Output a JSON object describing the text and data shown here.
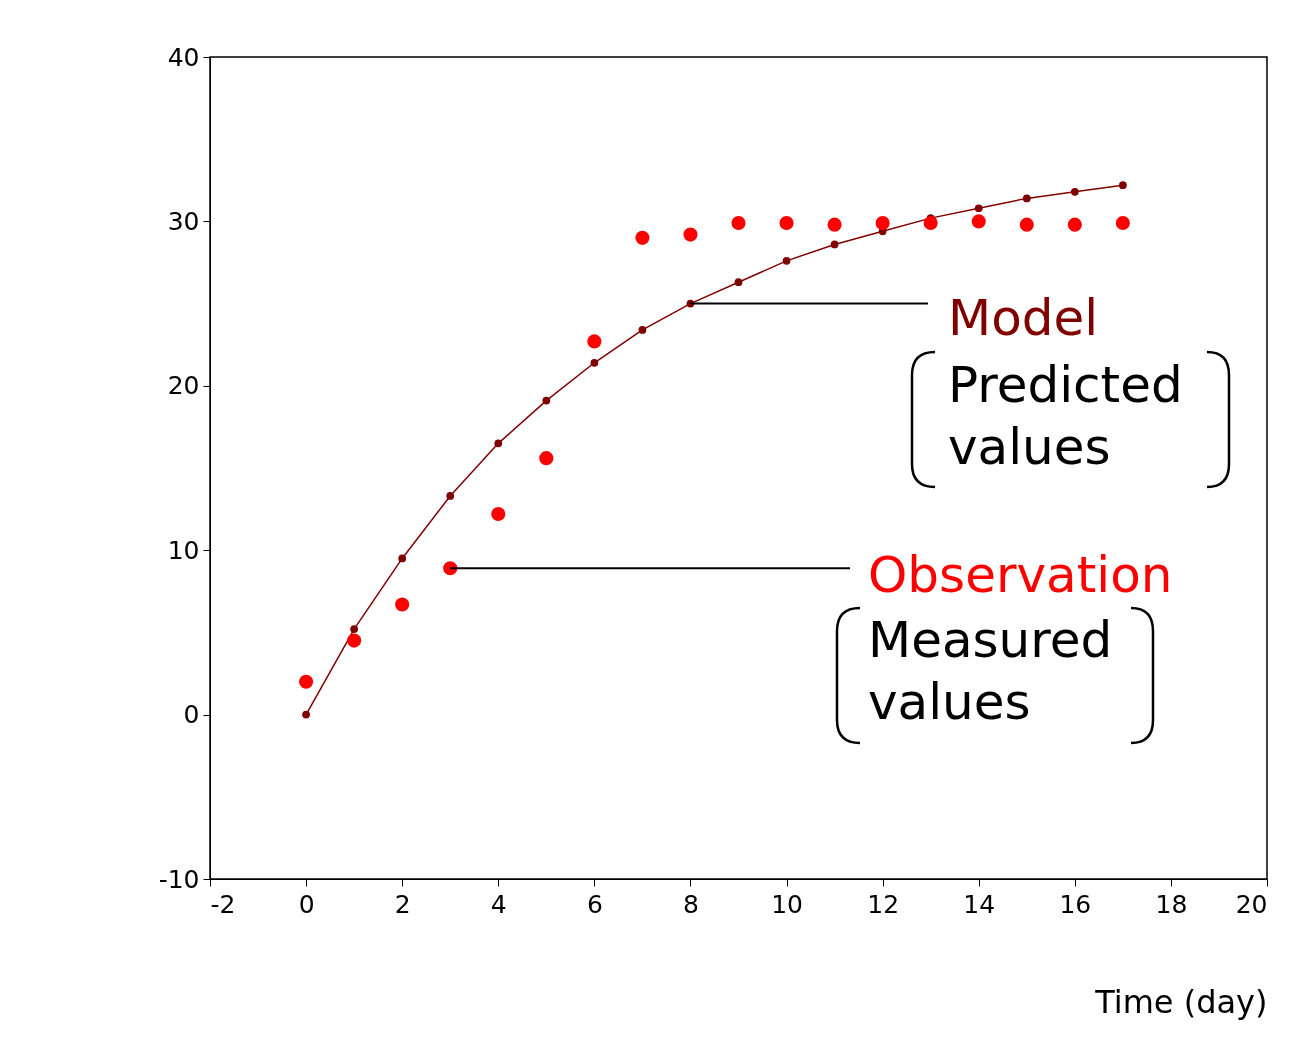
{
  "chart_data": {
    "type": "scatter",
    "xlabel": "Time (day)",
    "xlim": [
      -2,
      20
    ],
    "xticks": [
      -2,
      0,
      2,
      4,
      6,
      8,
      10,
      12,
      14,
      16,
      18,
      20
    ],
    "ylim": [
      -10,
      40
    ],
    "yticks": [
      -10,
      0,
      10,
      20,
      30,
      40
    ],
    "grid": false,
    "legend": false,
    "series": [
      {
        "name": "Model",
        "type": "line",
        "color": "#800000",
        "marker": "circle",
        "x": [
          0,
          1,
          2,
          3,
          4,
          5,
          6,
          7,
          8,
          9,
          10,
          11,
          12,
          13,
          14,
          15,
          16,
          17
        ],
        "values": [
          0,
          5.2,
          9.5,
          13.3,
          16.5,
          19.1,
          21.4,
          23.4,
          25.0,
          26.3,
          27.6,
          28.6,
          29.4,
          30.2,
          30.8,
          31.4,
          31.8,
          32.2
        ]
      },
      {
        "name": "Observation",
        "color": "#ff0000",
        "marker": "circle",
        "x": [
          0,
          1,
          2,
          3,
          4,
          5,
          6,
          7,
          8,
          9,
          10,
          11,
          12,
          13,
          14,
          15,
          16,
          17
        ],
        "values": [
          2.0,
          4.5,
          6.7,
          8.9,
          12.2,
          15.6,
          22.7,
          29.0,
          29.2,
          29.9,
          29.9,
          29.8,
          29.9,
          29.9,
          30.0,
          29.8,
          29.8,
          29.9
        ]
      }
    ],
    "annotations": [
      {
        "text": "Predicted values",
        "x": 8,
        "y": 25.0
      },
      {
        "text": "Measured values",
        "x": 3,
        "y": 8.9
      }
    ]
  }
}
